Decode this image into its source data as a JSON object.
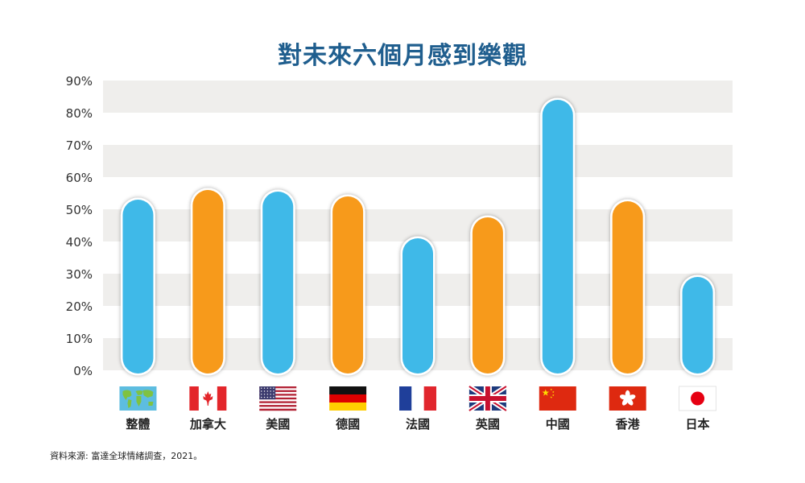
{
  "chart_data": {
    "type": "bar",
    "title": "對未來六個月感到樂觀",
    "categories": [
      "整體",
      "加拿大",
      "美國",
      "德國",
      "法國",
      "英國",
      "中國",
      "香港",
      "日本"
    ],
    "values": [
      53,
      56,
      55.5,
      54,
      41,
      47.5,
      84,
      52.5,
      29
    ],
    "bar_colors": [
      "#3fb9e8",
      "#f79a1b",
      "#3fb9e8",
      "#f79a1b",
      "#3fb9e8",
      "#f79a1b",
      "#3fb9e8",
      "#f79a1b",
      "#3fb9e8"
    ],
    "flags": [
      "world-map",
      "canada",
      "usa",
      "germany",
      "france",
      "uk",
      "china",
      "hong-kong",
      "japan"
    ],
    "yticks": [
      "0%",
      "10%",
      "20%",
      "30%",
      "40%",
      "50%",
      "60%",
      "70%",
      "80%",
      "90%"
    ],
    "ylim": [
      0,
      90
    ],
    "grid": "alternating-bands",
    "xlabel": "",
    "ylabel": ""
  },
  "source": "資料來源: 富達全球情緒調查，2021。"
}
